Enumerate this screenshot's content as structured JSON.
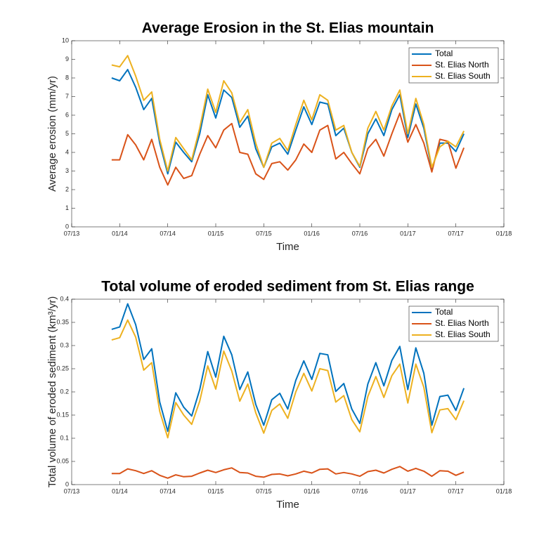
{
  "chart_data": [
    {
      "type": "line",
      "title": "Average Erosion in the St. Elias mountain",
      "xlabel": "Time",
      "ylabel": "Average erosion (mm/yr)",
      "x": [
        "2013-12",
        "2014-01",
        "2014-02",
        "2014-03",
        "2014-04",
        "2014-05",
        "2014-06",
        "2014-07",
        "2014-08",
        "2014-09",
        "2014-10",
        "2014-11",
        "2014-12",
        "2015-01",
        "2015-02",
        "2015-03",
        "2015-04",
        "2015-05",
        "2015-06",
        "2015-07",
        "2015-08",
        "2015-09",
        "2015-10",
        "2015-11",
        "2015-12",
        "2016-01",
        "2016-02",
        "2016-03",
        "2016-04",
        "2016-05",
        "2016-06",
        "2016-07",
        "2016-08",
        "2016-09",
        "2016-10",
        "2016-11",
        "2016-12",
        "2017-01",
        "2017-02",
        "2017-03",
        "2017-04",
        "2017-05",
        "2017-06",
        "2017-07",
        "2017-08"
      ],
      "series": [
        {
          "name": "Total",
          "color": "#0072BD",
          "values": [
            8.0,
            7.85,
            8.45,
            7.5,
            6.3,
            6.9,
            4.5,
            2.85,
            4.55,
            4.0,
            3.5,
            5.0,
            7.1,
            5.85,
            7.35,
            6.95,
            5.35,
            5.95,
            4.2,
            3.2,
            4.3,
            4.5,
            3.9,
            5.2,
            6.45,
            5.5,
            6.7,
            6.6,
            4.9,
            5.3,
            4.0,
            3.2,
            5.0,
            5.8,
            4.9,
            6.3,
            7.1,
            4.8,
            6.6,
            5.3,
            3.1,
            4.5,
            4.5,
            4.05,
            5.0
          ]
        },
        {
          "name": "St. Elias North",
          "color": "#D95319",
          "values": [
            3.6,
            3.6,
            4.95,
            4.4,
            3.6,
            4.7,
            3.2,
            2.25,
            3.2,
            2.6,
            2.75,
            3.9,
            4.9,
            4.25,
            5.2,
            5.55,
            4.0,
            3.9,
            2.85,
            2.55,
            3.4,
            3.5,
            3.05,
            3.6,
            4.45,
            4.0,
            5.2,
            5.45,
            3.65,
            4.0,
            3.4,
            2.85,
            4.2,
            4.7,
            3.8,
            5.0,
            6.1,
            4.55,
            5.5,
            4.5,
            2.95,
            4.7,
            4.6,
            3.15,
            4.25
          ]
        },
        {
          "name": "St. Elias South",
          "color": "#EDB120",
          "values": [
            8.7,
            8.6,
            9.2,
            8.1,
            6.8,
            7.25,
            4.7,
            3.0,
            4.8,
            4.2,
            3.6,
            5.3,
            7.4,
            6.15,
            7.85,
            7.2,
            5.6,
            6.3,
            4.5,
            3.2,
            4.5,
            4.75,
            4.1,
            5.5,
            6.8,
            5.75,
            7.1,
            6.8,
            5.2,
            5.45,
            4.0,
            3.25,
            5.3,
            6.2,
            5.2,
            6.5,
            7.35,
            5.0,
            6.9,
            5.5,
            3.2,
            4.3,
            4.6,
            4.3,
            5.15
          ]
        }
      ],
      "xlim": [
        "2013-07",
        "2018-01"
      ],
      "xticks": [
        {
          "value": "2013-07",
          "label": "07/13"
        },
        {
          "value": "2014-01",
          "label": "01/14"
        },
        {
          "value": "2014-07",
          "label": "07/14"
        },
        {
          "value": "2015-01",
          "label": "01/15"
        },
        {
          "value": "2015-07",
          "label": "07/15"
        },
        {
          "value": "2016-01",
          "label": "01/16"
        },
        {
          "value": "2016-07",
          "label": "07/16"
        },
        {
          "value": "2017-01",
          "label": "01/17"
        },
        {
          "value": "2017-07",
          "label": "07/17"
        },
        {
          "value": "2018-01",
          "label": "01/18"
        }
      ],
      "ylim": [
        0,
        10
      ],
      "yticks": [
        0,
        1,
        2,
        3,
        4,
        5,
        6,
        7,
        8,
        9,
        10
      ],
      "legend": "upper right"
    },
    {
      "type": "line",
      "title": "Total volume of eroded sediment from St. Elias range",
      "xlabel": "Time",
      "ylabel": "Total volume of eroded sediment (km³/yr)",
      "x": [
        "2013-12",
        "2014-01",
        "2014-02",
        "2014-03",
        "2014-04",
        "2014-05",
        "2014-06",
        "2014-07",
        "2014-08",
        "2014-09",
        "2014-10",
        "2014-11",
        "2014-12",
        "2015-01",
        "2015-02",
        "2015-03",
        "2015-04",
        "2015-05",
        "2015-06",
        "2015-07",
        "2015-08",
        "2015-09",
        "2015-10",
        "2015-11",
        "2015-12",
        "2016-01",
        "2016-02",
        "2016-03",
        "2016-04",
        "2016-05",
        "2016-06",
        "2016-07",
        "2016-08",
        "2016-09",
        "2016-10",
        "2016-11",
        "2016-12",
        "2017-01",
        "2017-02",
        "2017-03",
        "2017-04",
        "2017-05",
        "2017-06",
        "2017-07",
        "2017-08"
      ],
      "series": [
        {
          "name": "Total",
          "color": "#0072BD",
          "values": [
            0.335,
            0.34,
            0.39,
            0.345,
            0.27,
            0.293,
            0.178,
            0.115,
            0.198,
            0.167,
            0.148,
            0.205,
            0.287,
            0.232,
            0.32,
            0.28,
            0.205,
            0.243,
            0.173,
            0.128,
            0.183,
            0.197,
            0.163,
            0.225,
            0.267,
            0.227,
            0.283,
            0.28,
            0.201,
            0.218,
            0.163,
            0.132,
            0.217,
            0.263,
            0.213,
            0.268,
            0.298,
            0.205,
            0.295,
            0.24,
            0.128,
            0.19,
            0.193,
            0.16,
            0.208
          ]
        },
        {
          "name": "St. Elias North",
          "color": "#D95319",
          "values": [
            0.024,
            0.024,
            0.034,
            0.03,
            0.024,
            0.03,
            0.02,
            0.014,
            0.021,
            0.017,
            0.018,
            0.025,
            0.031,
            0.026,
            0.032,
            0.036,
            0.026,
            0.025,
            0.018,
            0.016,
            0.022,
            0.023,
            0.019,
            0.023,
            0.029,
            0.025,
            0.033,
            0.034,
            0.023,
            0.026,
            0.023,
            0.018,
            0.028,
            0.031,
            0.025,
            0.033,
            0.039,
            0.029,
            0.035,
            0.029,
            0.018,
            0.03,
            0.029,
            0.02,
            0.027
          ]
        },
        {
          "name": "St. Elias South",
          "color": "#EDB120",
          "values": [
            0.312,
            0.317,
            0.355,
            0.318,
            0.247,
            0.263,
            0.158,
            0.101,
            0.177,
            0.15,
            0.13,
            0.18,
            0.256,
            0.206,
            0.288,
            0.245,
            0.18,
            0.217,
            0.155,
            0.111,
            0.16,
            0.174,
            0.143,
            0.2,
            0.24,
            0.202,
            0.25,
            0.246,
            0.178,
            0.192,
            0.14,
            0.114,
            0.19,
            0.233,
            0.188,
            0.235,
            0.26,
            0.176,
            0.26,
            0.21,
            0.112,
            0.161,
            0.164,
            0.14,
            0.181
          ]
        }
      ],
      "xlim": [
        "2013-07",
        "2018-01"
      ],
      "xticks": [
        {
          "value": "2013-07",
          "label": "07/13"
        },
        {
          "value": "2014-01",
          "label": "01/14"
        },
        {
          "value": "2014-07",
          "label": "07/14"
        },
        {
          "value": "2015-01",
          "label": "01/15"
        },
        {
          "value": "2015-07",
          "label": "07/15"
        },
        {
          "value": "2016-01",
          "label": "01/16"
        },
        {
          "value": "2016-07",
          "label": "07/16"
        },
        {
          "value": "2017-01",
          "label": "01/17"
        },
        {
          "value": "2017-07",
          "label": "07/17"
        },
        {
          "value": "2018-01",
          "label": "01/18"
        }
      ],
      "ylim": [
        0,
        0.4
      ],
      "yticks": [
        0,
        0.05,
        0.1,
        0.15,
        0.2,
        0.25,
        0.3,
        0.35,
        0.4
      ],
      "legend": "upper right"
    }
  ]
}
